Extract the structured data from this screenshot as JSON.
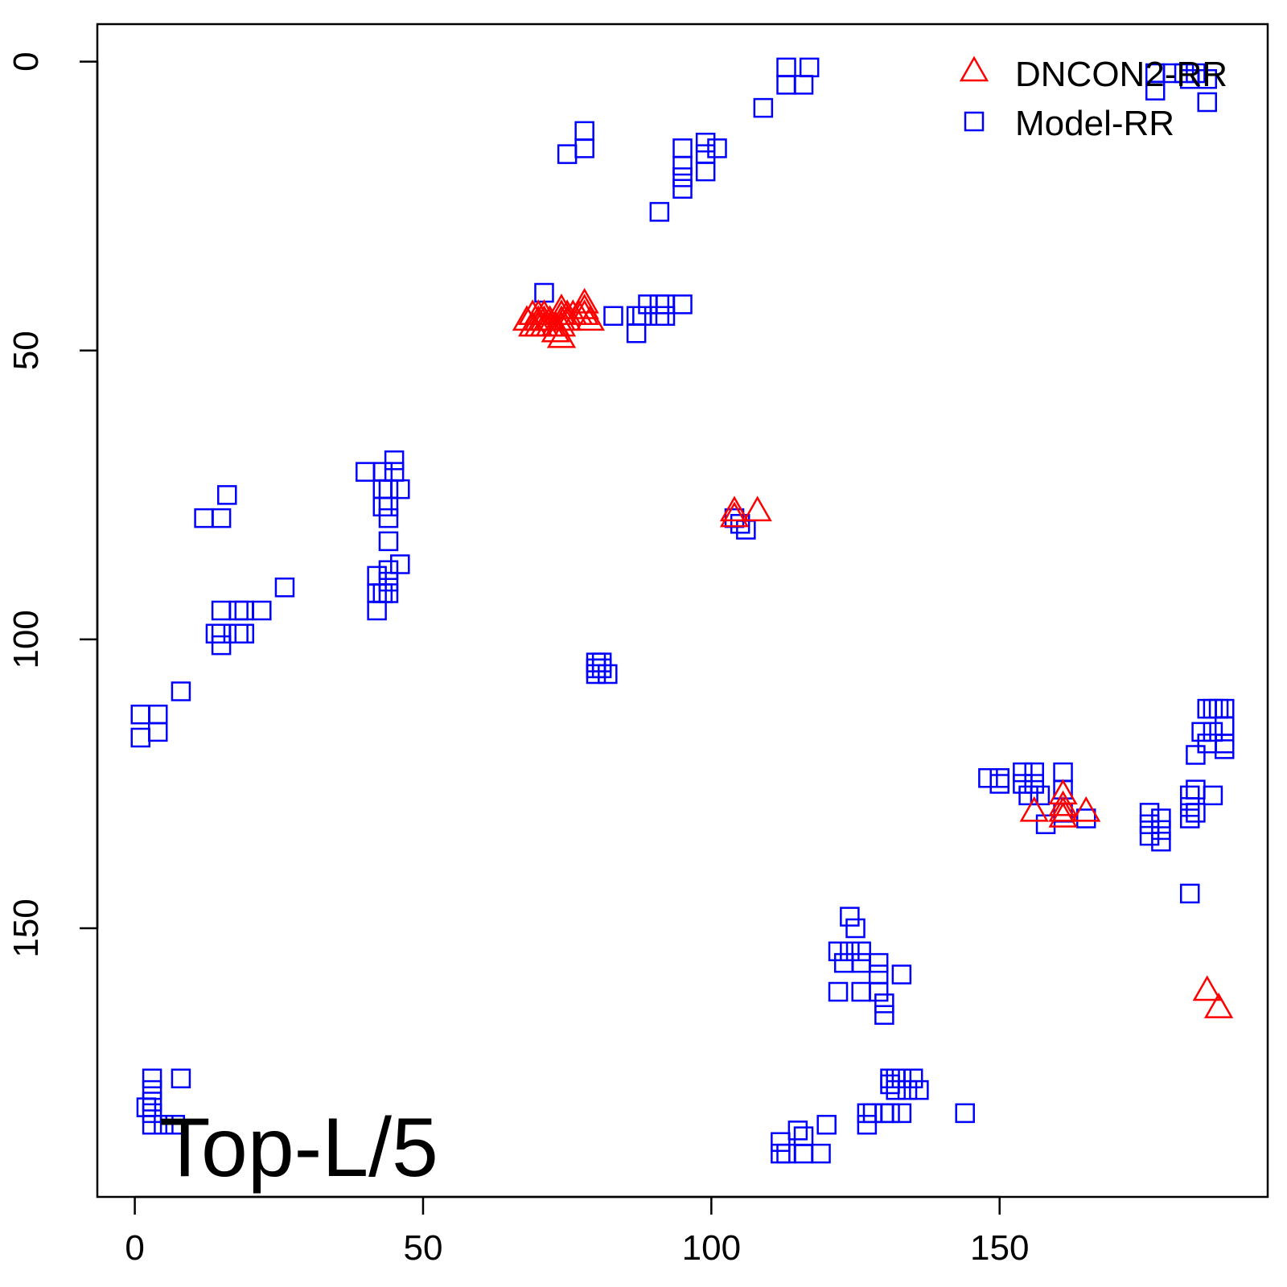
{
  "chart_data": {
    "type": "scatter",
    "annotation": "Top-L/5",
    "xlim": [
      -6.5,
      196.5
    ],
    "ylim": [
      -6.5,
      196.5
    ],
    "y_reversed": true,
    "x_ticks": [
      0,
      50,
      100,
      150
    ],
    "y_ticks": [
      0,
      50,
      100,
      150
    ],
    "grid": false,
    "legend_position": "top-right",
    "series": [
      {
        "name": "DNCON2-RR",
        "marker": "triangle",
        "color": "#ff0000",
        "points": [
          [
            68,
            45
          ],
          [
            69,
            44
          ],
          [
            69,
            46
          ],
          [
            70,
            44
          ],
          [
            70,
            45
          ],
          [
            70,
            46
          ],
          [
            71,
            44
          ],
          [
            71,
            45
          ],
          [
            71,
            46
          ],
          [
            72,
            45
          ],
          [
            72,
            46
          ],
          [
            73,
            46
          ],
          [
            73,
            47
          ],
          [
            74,
            43
          ],
          [
            74,
            44
          ],
          [
            74,
            45
          ],
          [
            74,
            46
          ],
          [
            74,
            48
          ],
          [
            75,
            44
          ],
          [
            75,
            45
          ],
          [
            76,
            44
          ],
          [
            77,
            44
          ],
          [
            78,
            42
          ],
          [
            78,
            43
          ],
          [
            78,
            44
          ],
          [
            79,
            45
          ],
          [
            104,
            78
          ],
          [
            104,
            79
          ],
          [
            108,
            78
          ],
          [
            156,
            130
          ],
          [
            161,
            127
          ],
          [
            161,
            129
          ],
          [
            161,
            130
          ],
          [
            161,
            131
          ],
          [
            165,
            130
          ],
          [
            186,
            161
          ],
          [
            188,
            164
          ]
        ]
      },
      {
        "name": "Model-RR",
        "marker": "square",
        "color": "#0000ff",
        "points": [
          [
            113,
            1
          ],
          [
            113,
            4
          ],
          [
            117,
            1
          ],
          [
            116,
            4
          ],
          [
            109,
            8
          ],
          [
            78,
            12
          ],
          [
            78,
            15
          ],
          [
            75,
            16
          ],
          [
            95,
            15
          ],
          [
            95,
            18
          ],
          [
            95,
            20
          ],
          [
            95,
            22
          ],
          [
            99,
            14
          ],
          [
            99,
            16
          ],
          [
            99,
            19
          ],
          [
            101,
            15
          ],
          [
            91,
            26
          ],
          [
            71,
            40
          ],
          [
            83,
            44
          ],
          [
            87,
            44
          ],
          [
            88,
            44
          ],
          [
            87,
            47
          ],
          [
            89,
            42
          ],
          [
            91,
            42
          ],
          [
            91,
            44
          ],
          [
            92,
            42
          ],
          [
            92,
            44
          ],
          [
            95,
            42
          ],
          [
            180,
            2
          ],
          [
            182,
            2
          ],
          [
            183,
            3
          ],
          [
            184,
            2
          ],
          [
            186,
            3
          ],
          [
            186,
            7
          ],
          [
            177,
            2
          ],
          [
            177,
            5
          ],
          [
            40,
            71
          ],
          [
            43,
            71
          ],
          [
            45,
            69
          ],
          [
            45,
            71
          ],
          [
            43,
            74
          ],
          [
            43,
            77
          ],
          [
            44,
            74
          ],
          [
            44,
            77
          ],
          [
            46,
            74
          ],
          [
            44,
            79
          ],
          [
            44,
            83
          ],
          [
            46,
            87
          ],
          [
            44,
            88
          ],
          [
            42,
            89
          ],
          [
            42,
            92
          ],
          [
            43,
            92
          ],
          [
            44,
            90
          ],
          [
            44,
            92
          ],
          [
            42,
            95
          ],
          [
            26,
            91
          ],
          [
            12,
            79
          ],
          [
            15,
            79
          ],
          [
            16,
            75
          ],
          [
            15,
            95
          ],
          [
            15,
            99
          ],
          [
            15,
            101
          ],
          [
            18,
            95
          ],
          [
            18,
            99
          ],
          [
            19,
            95
          ],
          [
            19,
            99
          ],
          [
            22,
            95
          ],
          [
            14,
            99
          ],
          [
            8,
            109
          ],
          [
            1,
            113
          ],
          [
            1,
            117
          ],
          [
            4,
            113
          ],
          [
            4,
            116
          ],
          [
            80,
            104
          ],
          [
            80,
            105
          ],
          [
            81,
            104
          ],
          [
            81,
            105
          ],
          [
            82,
            106
          ],
          [
            80,
            106
          ],
          [
            104,
            79
          ],
          [
            105,
            80
          ],
          [
            106,
            81
          ],
          [
            148,
            124
          ],
          [
            150,
            124
          ],
          [
            150,
            125
          ],
          [
            154,
            123
          ],
          [
            154,
            125
          ],
          [
            155,
            127
          ],
          [
            156,
            123
          ],
          [
            156,
            125
          ],
          [
            157,
            127
          ],
          [
            158,
            132
          ],
          [
            161,
            123
          ],
          [
            161,
            126
          ],
          [
            161,
            130
          ],
          [
            165,
            131
          ],
          [
            176,
            130
          ],
          [
            176,
            132
          ],
          [
            176,
            134
          ],
          [
            178,
            131
          ],
          [
            178,
            133
          ],
          [
            178,
            135
          ],
          [
            183,
            127
          ],
          [
            183,
            129
          ],
          [
            183,
            131
          ],
          [
            184,
            126
          ],
          [
            184,
            130
          ],
          [
            187,
            127
          ],
          [
            186,
            112
          ],
          [
            187,
            112
          ],
          [
            188,
            112
          ],
          [
            189,
            112
          ],
          [
            189,
            115
          ],
          [
            189,
            118
          ],
          [
            189,
            119
          ],
          [
            186,
            118
          ],
          [
            185,
            116
          ],
          [
            187,
            116
          ],
          [
            184,
            120
          ],
          [
            183,
            144
          ],
          [
            124,
            148
          ],
          [
            125,
            150
          ],
          [
            122,
            154
          ],
          [
            123,
            156
          ],
          [
            124,
            154
          ],
          [
            126,
            154
          ],
          [
            126,
            156
          ],
          [
            122,
            161
          ],
          [
            126,
            161
          ],
          [
            129,
            156
          ],
          [
            129,
            158
          ],
          [
            129,
            161
          ],
          [
            130,
            163
          ],
          [
            130,
            165
          ],
          [
            133,
            158
          ],
          [
            131,
            176
          ],
          [
            131,
            177
          ],
          [
            132,
            176
          ],
          [
            132,
            178
          ],
          [
            133,
            176
          ],
          [
            134,
            178
          ],
          [
            135,
            176
          ],
          [
            136,
            178
          ],
          [
            127,
            182
          ],
          [
            127,
            184
          ],
          [
            128,
            182
          ],
          [
            130,
            182
          ],
          [
            131,
            182
          ],
          [
            133,
            182
          ],
          [
            144,
            182
          ],
          [
            112,
            187
          ],
          [
            112,
            189
          ],
          [
            116,
            186
          ],
          [
            116,
            189
          ],
          [
            119,
            189
          ],
          [
            113,
            189
          ],
          [
            120,
            184
          ],
          [
            115,
            185
          ],
          [
            3,
            176
          ],
          [
            3,
            178
          ],
          [
            3,
            180
          ],
          [
            2,
            181
          ],
          [
            3,
            182
          ],
          [
            3,
            184
          ],
          [
            5,
            184
          ],
          [
            7,
            184
          ],
          [
            8,
            176
          ]
        ]
      }
    ]
  }
}
